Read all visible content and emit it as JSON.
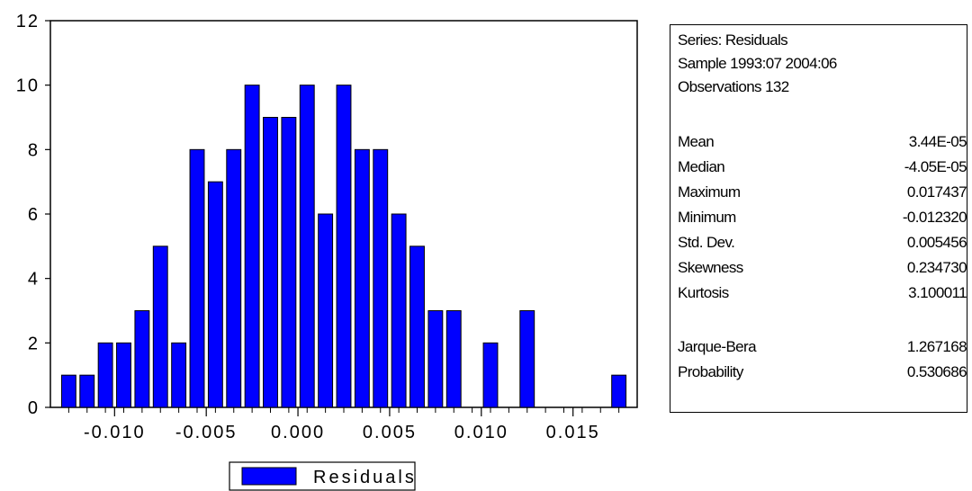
{
  "chart_data": {
    "type": "bar",
    "series": [
      {
        "name": "Residuals",
        "x": [
          -0.0125,
          -0.0115,
          -0.0105,
          -0.0095,
          -0.0085,
          -0.0075,
          -0.0065,
          -0.0055,
          -0.0045,
          -0.0035,
          -0.0025,
          -0.0015,
          -0.0005,
          0.0005,
          0.0015,
          0.0025,
          0.0035,
          0.0045,
          0.0055,
          0.0065,
          0.0075,
          0.0085,
          0.0095,
          0.0105,
          0.0115,
          0.0125,
          0.0135,
          0.0145,
          0.0155,
          0.0165,
          0.0175
        ],
        "values": [
          1,
          1,
          2,
          2,
          3,
          5,
          2,
          8,
          7,
          8,
          10,
          9,
          9,
          10,
          6,
          10,
          8,
          8,
          6,
          5,
          3,
          3,
          0,
          2,
          0,
          3,
          0,
          0,
          0,
          0,
          1
        ]
      }
    ],
    "xlim": [
      -0.0135,
      0.0185
    ],
    "ylim": [
      0,
      12
    ],
    "xticks": [
      -0.01,
      -0.005,
      0.0,
      0.005,
      0.01,
      0.015
    ],
    "xtick_labels": [
      "-0.010",
      "-0.005",
      "0.000",
      "0.005",
      "0.010",
      "0.015"
    ],
    "yticks": [
      0,
      2,
      4,
      6,
      8,
      10,
      12
    ],
    "ytick_labels": [
      "0",
      "2",
      "4",
      "6",
      "8",
      "10",
      "12"
    ],
    "legend": {
      "position": "bottom-center",
      "entries": [
        "Residuals"
      ]
    },
    "colors": {
      "bar_fill": "#0000ff",
      "bar_stroke": "#000000"
    },
    "grid": false
  },
  "stats": {
    "header": [
      "Series: Residuals",
      "Sample 1993:07 2004:06",
      "Observations 132"
    ],
    "rows": [
      {
        "label": "Mean",
        "value": "3.44E-05"
      },
      {
        "label": "Median",
        "value": "-4.05E-05"
      },
      {
        "label": "Maximum",
        "value": "0.017437"
      },
      {
        "label": "Minimum",
        "value": "-0.012320"
      },
      {
        "label": "Std. Dev.",
        "value": "0.005456"
      },
      {
        "label": "Skewness",
        "value": "0.234730"
      },
      {
        "label": "Kurtosis",
        "value": "3.100011"
      }
    ],
    "test_rows": [
      {
        "label": "Jarque-Bera",
        "value": "1.267168"
      },
      {
        "label": "Probability",
        "value": "0.530686"
      }
    ]
  }
}
